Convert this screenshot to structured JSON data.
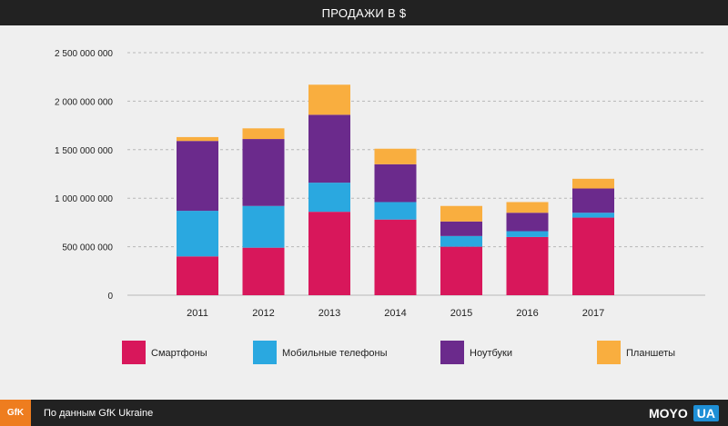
{
  "header": {
    "title": "ПРОДАЖИ В $"
  },
  "footer": {
    "logo": "GfK",
    "source": "По данным GfK Ukraine",
    "brand_left": "MOYO",
    "brand_right": "UA"
  },
  "colors": {
    "smartphones": "#d8175b",
    "mobile": "#2aa8e0",
    "notebooks": "#6b2a8c",
    "tablets": "#f9ae3f"
  },
  "chart_data": {
    "type": "bar",
    "stacked": true,
    "title": "ПРОДАЖИ В $",
    "categories": [
      "2011",
      "2012",
      "2013",
      "2014",
      "2015",
      "2016",
      "2017"
    ],
    "series": [
      {
        "name": "Смартфоны",
        "color": "#d8175b",
        "values": [
          400000000,
          490000000,
          860000000,
          780000000,
          500000000,
          600000000,
          800000000
        ]
      },
      {
        "name": "Мобильные телефоны",
        "color": "#2aa8e0",
        "values": [
          470000000,
          430000000,
          300000000,
          180000000,
          110000000,
          60000000,
          50000000
        ]
      },
      {
        "name": "Ноутбуки",
        "color": "#6b2a8c",
        "values": [
          720000000,
          690000000,
          700000000,
          390000000,
          150000000,
          190000000,
          250000000
        ]
      },
      {
        "name": "Планшеты",
        "color": "#f9ae3f",
        "values": [
          40000000,
          110000000,
          310000000,
          160000000,
          160000000,
          110000000,
          100000000
        ]
      }
    ],
    "yticks": [
      0,
      500000000,
      1000000000,
      1500000000,
      2000000000,
      2500000000
    ],
    "ytick_labels": [
      "0",
      "500 000 000",
      "1 000 000 000",
      "1 500 000 000",
      "2 000 000 000",
      "2 500 000 000"
    ],
    "ylim": [
      0,
      2500000000
    ],
    "grid": true,
    "legend_position": "bottom"
  }
}
